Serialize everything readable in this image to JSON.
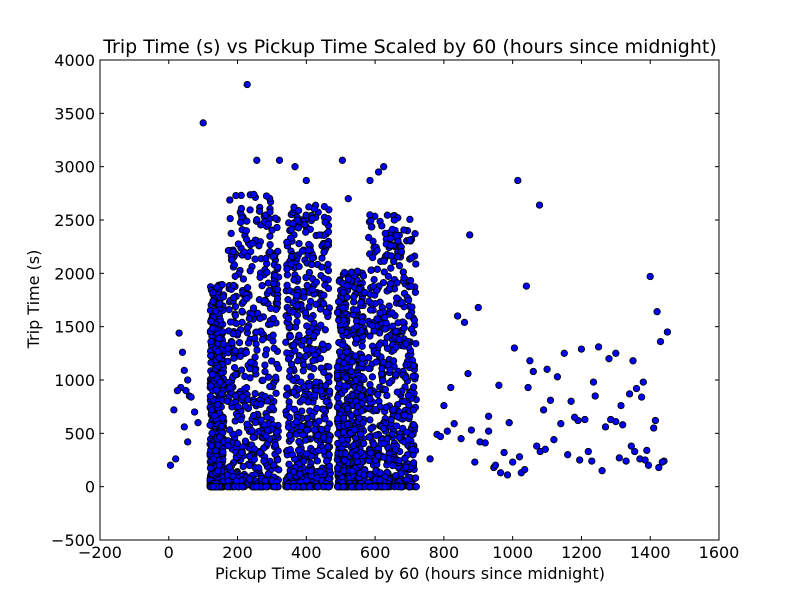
{
  "chart_data": {
    "type": "scatter",
    "title": "Trip Time (s) vs Pickup Time Scaled by 60 (hours since midnight)",
    "xlabel": "Pickup Time Scaled by 60 (hours since midnight)",
    "ylabel": "Trip Time (s)",
    "xlim": [
      -200,
      1600
    ],
    "ylim": [
      -500,
      4000
    ],
    "xticks": [
      -200,
      0,
      200,
      400,
      600,
      800,
      1000,
      1200,
      1400,
      1600
    ],
    "yticks": [
      -500,
      0,
      500,
      1000,
      1500,
      2000,
      2500,
      3000,
      3500,
      4000
    ],
    "xtick_labels": [
      "−200",
      "0",
      "200",
      "400",
      "600",
      "800",
      "1000",
      "1200",
      "1400",
      "1600"
    ],
    "ytick_labels": [
      "−500",
      "0",
      "500",
      "1000",
      "1500",
      "2000",
      "2500",
      "3000",
      "3500",
      "4000"
    ],
    "grid": false,
    "legend": "none",
    "marker_color": "#0000ff",
    "marker_edge": "#000000",
    "series": [
      {
        "x": [
          100,
          228,
          256,
          322,
          367,
          400,
          505,
          522,
          585,
          610,
          625,
          1015,
          1078,
          1040,
          875,
          1400,
          1420,
          1450,
          1430,
          1005,
          1050,
          1100,
          1150,
          1200,
          1250,
          1300,
          1350,
          1380,
          1410,
          840,
          820,
          860,
          900,
          930,
          960,
          990,
          1020,
          1060,
          1090,
          1130,
          1170,
          1210,
          1240,
          1280,
          1320,
          1360,
          1390,
          1440,
          780,
          800,
          870,
          905,
          945,
          975,
          1025,
          1070,
          1110,
          1160,
          1190,
          1230,
          1270,
          1310,
          1340,
          1370,
          1395,
          1425,
          760,
          810,
          850,
          880,
          920,
          950,
          985,
          1035,
          1080,
          1120,
          1180,
          1220,
          1260,
          1300,
          1330,
          1355,
          1385,
          1415,
          790,
          830,
          890,
          930,
          965,
          1000,
          1045,
          1095,
          1140,
          1195,
          1235,
          1285,
          1315,
          1345,
          1375,
          1435,
          30,
          40,
          45,
          55,
          60,
          15,
          5,
          20,
          35,
          50,
          65,
          75,
          85,
          25,
          45,
          55
        ],
        "y": [
          3410,
          3770,
          3060,
          3060,
          3000,
          2870,
          3060,
          2700,
          2870,
          2950,
          3000,
          2870,
          2640,
          1880,
          2360,
          1970,
          1640,
          1450,
          1360,
          1300,
          1180,
          1100,
          1250,
          1290,
          1310,
          1250,
          1180,
          980,
          550,
          1600,
          930,
          1540,
          1680,
          660,
          950,
          600,
          280,
          1080,
          720,
          1030,
          800,
          630,
          850,
          1200,
          580,
          920,
          340,
          240,
          490,
          760,
          1060,
          420,
          180,
          320,
          130,
          380,
          810,
          300,
          620,
          240,
          560,
          270,
          870,
          260,
          200,
          180,
          260,
          520,
          450,
          530,
          410,
          200,
          110,
          160,
          330,
          440,
          650,
          330,
          150,
          610,
          240,
          330,
          250,
          620,
          470,
          590,
          230,
          520,
          130,
          230,
          930,
          350,
          590,
          250,
          980,
          630,
          760,
          380,
          840,
          230,
          1440,
          1260,
          1090,
          1000,
          850,
          720,
          200,
          260,
          930,
          900,
          840,
          700,
          600,
          900,
          560,
          420
        ]
      }
    ],
    "dense_clusters": [
      {
        "x_range": [
          120,
          160
        ],
        "y_range": [
          0,
          1900
        ],
        "x_peak": 140
      },
      {
        "x_range": [
          170,
          320
        ],
        "y_range": [
          0,
          2750
        ],
        "x_peak": 240
      },
      {
        "x_range": [
          340,
          470
        ],
        "y_range": [
          0,
          2640
        ],
        "x_peak": 400
      },
      {
        "x_range": [
          490,
          570
        ],
        "y_range": [
          0,
          2020
        ],
        "x_peak": 540
      },
      {
        "x_range": [
          580,
          720
        ],
        "y_range": [
          0,
          2550
        ],
        "x_peak": 630
      }
    ]
  }
}
